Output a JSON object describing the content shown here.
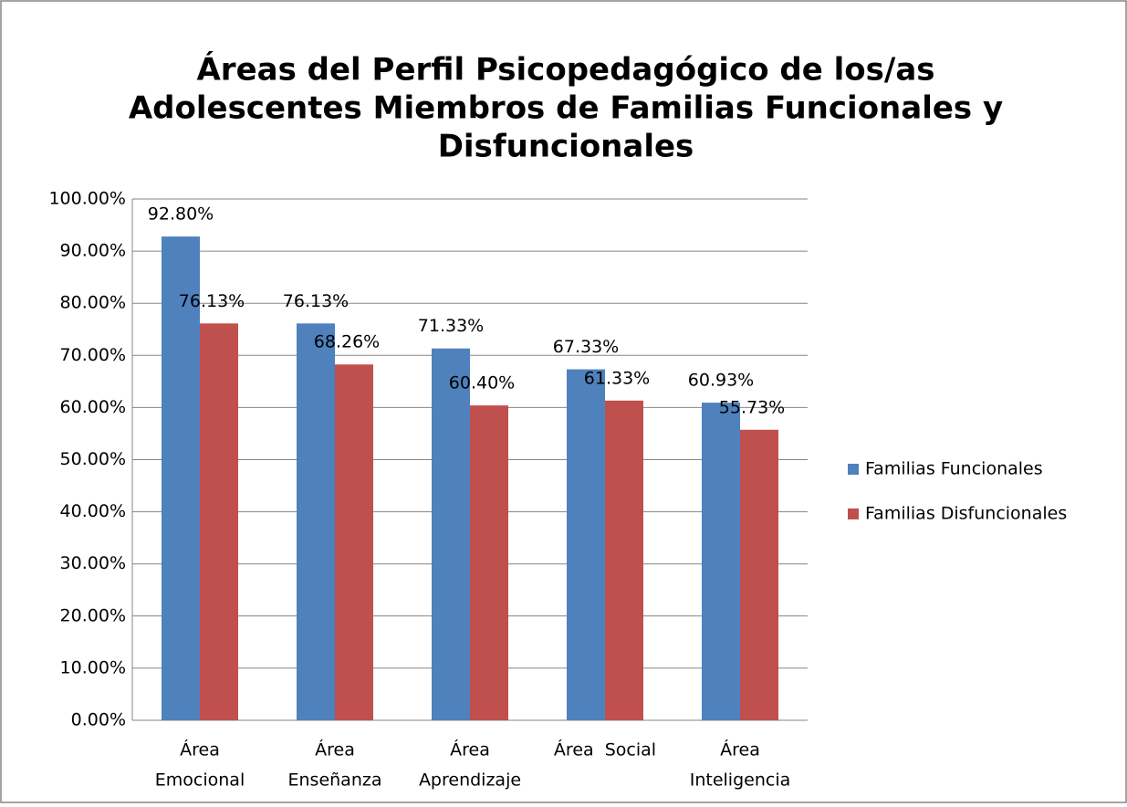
{
  "chart_data": {
    "type": "bar",
    "title": [
      "Áreas del Perfil Psicopedagógico de los/as",
      "Adolescentes Miembros de Familias Funcionales y",
      "Disfuncionales"
    ],
    "categories": [
      [
        "Área",
        "Emocional"
      ],
      [
        "Área",
        "Enseñanza"
      ],
      [
        "Área",
        "Aprendizaje"
      ],
      [
        "Área  Social"
      ],
      [
        "Área",
        "Inteligencia"
      ]
    ],
    "series": [
      {
        "name": "Familias Funcionales",
        "color": "#4f81bd",
        "values": [
          92.8,
          76.13,
          71.33,
          67.33,
          60.93
        ],
        "value_labels": [
          "92.80%",
          "76.13%",
          "71.33%",
          "67.33%",
          "60.93%"
        ]
      },
      {
        "name": "Familias Disfuncionales",
        "color": "#c0504d",
        "values": [
          76.13,
          68.26,
          60.4,
          61.33,
          55.73
        ],
        "value_labels": [
          "76.13%",
          "68.26%",
          "60.40%",
          "61.33%",
          "55.73%"
        ]
      }
    ],
    "ylim": [
      0,
      100
    ],
    "yticks": [
      {
        "value": 0,
        "label": "0.00%"
      },
      {
        "value": 10,
        "label": "10.00%"
      },
      {
        "value": 20,
        "label": "20.00%"
      },
      {
        "value": 30,
        "label": "30.00%"
      },
      {
        "value": 40,
        "label": "40.00%"
      },
      {
        "value": 50,
        "label": "50.00%"
      },
      {
        "value": 60,
        "label": "60.00%"
      },
      {
        "value": 70,
        "label": "70.00%"
      },
      {
        "value": 80,
        "label": "80.00%"
      },
      {
        "value": 90,
        "label": "90.00%"
      },
      {
        "value": 100,
        "label": "100.00%"
      }
    ],
    "grid": true,
    "legend": "right"
  }
}
